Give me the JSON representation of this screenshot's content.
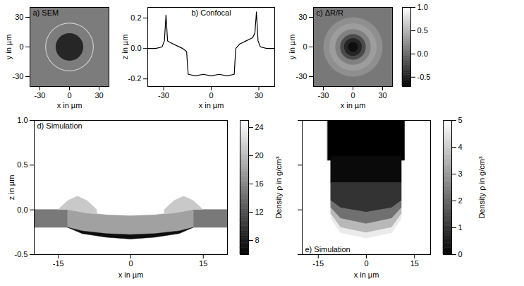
{
  "chart_data": [
    {
      "type": "image",
      "title": "a) SEM",
      "x_label": "x in µm",
      "y_label": "y in µm",
      "xlim": [
        -40,
        40
      ],
      "ylim": [
        -40,
        40
      ],
      "xticks": [
        -30,
        0,
        30
      ],
      "yticks": [
        -30,
        0,
        30
      ],
      "center": {
        "x": 0,
        "y": 0
      },
      "rings": [
        {
          "r": 60,
          "color": "#7c7c7c"
        },
        {
          "r": 24.6,
          "color": "#d0d0d0"
        },
        {
          "r": 23.8,
          "color": "#7c7c7c"
        },
        {
          "r": 14,
          "color": "#262626"
        }
      ]
    },
    {
      "type": "line",
      "title": "b) Confocal",
      "x_label": "x in µm",
      "y_label": "z in µm",
      "xlim": [
        -40,
        40
      ],
      "ylim": [
        -0.25,
        0.27
      ],
      "xticks": [
        -30,
        0,
        30
      ],
      "yticks": [
        {
          "value": -0.2,
          "label": "-0.2"
        },
        {
          "value": 0,
          "label": "0.0"
        },
        {
          "value": 0.2,
          "label": "0.2"
        }
      ],
      "color": "#000000",
      "x": [
        -40,
        -35,
        -31,
        -29.5,
        -28.5,
        -27.5,
        -26,
        -22,
        -18,
        -15.5,
        -15,
        -14.5,
        -10,
        -5,
        0,
        5,
        10,
        14.5,
        15,
        15.5,
        18,
        22,
        26,
        27.5,
        28.5,
        29.5,
        31,
        35,
        40
      ],
      "values": [
        0,
        0,
        0.01,
        0.05,
        0.22,
        0.05,
        0.04,
        0.02,
        0,
        -0.02,
        -0.1,
        -0.17,
        -0.18,
        -0.17,
        -0.18,
        -0.17,
        -0.18,
        -0.17,
        -0.08,
        0,
        0.03,
        0.05,
        0.07,
        0.1,
        0.24,
        0.05,
        0.01,
        0,
        0
      ]
    },
    {
      "type": "heatmap",
      "title": "c) ΔR/R",
      "x_label": "x in µm",
      "y_label": "y in µm",
      "xlim": [
        -40,
        40
      ],
      "ylim": [
        -40,
        40
      ],
      "xticks": [
        -30,
        0,
        30
      ],
      "yticks": [
        -30,
        0,
        30
      ],
      "center": {
        "x": 0,
        "y": 0
      },
      "rings": [
        {
          "r": 60,
          "value": 0.1
        },
        {
          "r": 30,
          "value": 0.25
        },
        {
          "r": 24,
          "value": 0.35
        },
        {
          "r": 18,
          "value": 0.15
        },
        {
          "r": 13,
          "value": -0.2
        },
        {
          "r": 9,
          "value": -0.45
        },
        {
          "r": 5,
          "value": -0.6
        }
      ],
      "colorbar": {
        "range": [
          -0.7,
          1.0
        ],
        "ticks": [
          {
            "value": -0.5,
            "label": "-0.5"
          },
          {
            "value": 0,
            "label": "0.0"
          },
          {
            "value": 0.5,
            "label": "0.5"
          },
          {
            "value": 1,
            "label": "1.0"
          }
        ]
      }
    },
    {
      "type": "heatmap",
      "title": "d) Simulation",
      "x_label": "x in µm",
      "y_label": "z in µm",
      "xlim": [
        -20,
        20
      ],
      "ylim": [
        -0.5,
        1.0
      ],
      "xticks": [
        -15,
        0,
        15
      ],
      "yticks": [
        {
          "value": -0.5,
          "label": "-0.5"
        },
        {
          "value": 0,
          "label": "0.0"
        },
        {
          "value": 0.5,
          "label": "0.5"
        },
        {
          "value": 1,
          "label": "1.0"
        }
      ],
      "regions": [
        {
          "x": [
            -20,
            -13
          ],
          "top": [
            0,
            0
          ],
          "bottom": [
            -0.2,
            -0.2
          ],
          "value": 15
        },
        {
          "x": [
            13,
            20
          ],
          "top": [
            0,
            0
          ],
          "bottom": [
            -0.2,
            -0.2
          ],
          "value": 15
        },
        {
          "x": [
            -13,
            -10,
            -5,
            0,
            5,
            10,
            13
          ],
          "top": [
            0,
            -0.03,
            -0.06,
            -0.07,
            -0.06,
            -0.03,
            0
          ],
          "bottom": [
            -0.2,
            -0.24,
            -0.27,
            -0.28,
            -0.27,
            -0.24,
            -0.2
          ],
          "value": 18
        },
        {
          "x": [
            -13,
            -10,
            -5,
            0,
            5,
            10,
            13
          ],
          "top": [
            -0.2,
            -0.24,
            -0.27,
            -0.28,
            -0.27,
            -0.24,
            -0.2
          ],
          "bottom": [
            -0.2,
            -0.27,
            -0.31,
            -0.33,
            -0.31,
            -0.27,
            -0.2
          ],
          "value": 7
        },
        {
          "x": [
            -15,
            -13,
            -11,
            -9,
            -7
          ],
          "top": [
            0,
            0.1,
            0.15,
            0.1,
            0
          ],
          "bottom": [
            0,
            0,
            -0.02,
            -0.04,
            -0.05
          ],
          "value": 21
        },
        {
          "x": [
            7,
            9,
            11,
            13,
            15
          ],
          "top": [
            0,
            0.1,
            0.15,
            0.1,
            0
          ],
          "bottom": [
            -0.05,
            -0.04,
            -0.02,
            0,
            0
          ],
          "value": 21
        }
      ],
      "colorbar": {
        "label": "Density ρ in g/cm³",
        "range": [
          6,
          25
        ],
        "ticks": [
          8,
          12,
          16,
          20,
          24
        ]
      }
    },
    {
      "type": "heatmap",
      "title": "e) Simulation",
      "x_label": "x in µm",
      "tick_labels": "x",
      "xlim": [
        -20,
        20
      ],
      "ylim": [
        -0.5,
        1.0
      ],
      "xticks": [
        -15,
        0,
        15
      ],
      "yticks": [
        -0.5,
        0,
        0.5,
        1
      ],
      "regions": [
        {
          "x": [
            -12,
            12
          ],
          "top": [
            1,
            1
          ],
          "bottom": [
            0.55,
            0.55
          ],
          "value": 0
        },
        {
          "x": [
            -11,
            11
          ],
          "top": [
            0.6,
            0.6
          ],
          "bottom": [
            0.3,
            0.3
          ],
          "value": 0.2
        },
        {
          "x": [
            -11,
            -8,
            0,
            8,
            11
          ],
          "top": [
            0.3,
            0.3,
            0.3,
            0.3,
            0.3
          ],
          "bottom": [
            0.1,
            0.02,
            -0.03,
            0.02,
            0.1
          ],
          "value": 1.0
        },
        {
          "x": [
            -11,
            -8,
            0,
            8,
            11
          ],
          "top": [
            0.1,
            0.02,
            -0.03,
            0.02,
            0.1
          ],
          "bottom": [
            0.02,
            -0.1,
            -0.16,
            -0.1,
            0.02
          ],
          "value": 2.2
        },
        {
          "x": [
            -11,
            -8,
            0,
            8,
            11
          ],
          "top": [
            0.02,
            -0.1,
            -0.16,
            -0.1,
            0.02
          ],
          "bottom": [
            -0.05,
            -0.2,
            -0.26,
            -0.2,
            -0.05
          ],
          "value": 3.6
        },
        {
          "x": [
            -11,
            -8,
            0,
            8,
            11
          ],
          "top": [
            -0.05,
            -0.2,
            -0.26,
            -0.2,
            -0.05
          ],
          "bottom": [
            -0.1,
            -0.26,
            -0.32,
            -0.26,
            -0.1
          ],
          "value": 4.6
        }
      ],
      "colorbar": {
        "label": "Density ρ in g/cm³",
        "range": [
          0,
          5
        ],
        "ticks": [
          0,
          1,
          2,
          3,
          4,
          5
        ]
      }
    }
  ]
}
